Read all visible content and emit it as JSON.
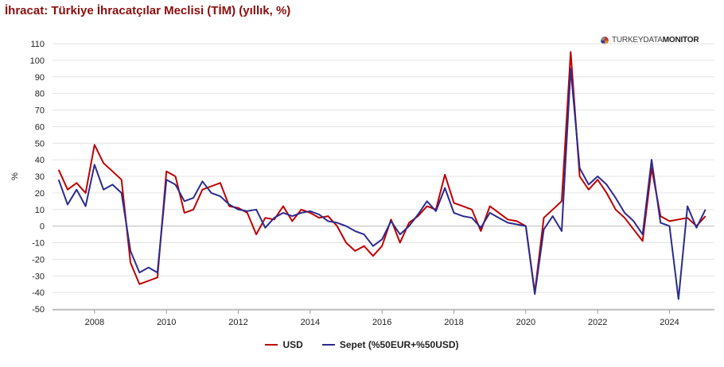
{
  "title": "İhracat: Türkiye İhracatçılar Meclisi (TİM) (yıllık, %)",
  "logo": {
    "prefix": "TURKEYDATA",
    "suffix": "MONITOR"
  },
  "chart_data": {
    "type": "line",
    "ylabel": "%",
    "ylim": [
      -50,
      110
    ],
    "yticks": [
      110,
      100,
      90,
      80,
      70,
      60,
      50,
      40,
      30,
      20,
      10,
      0,
      -10,
      -20,
      -30,
      -40,
      -50
    ],
    "xlim": [
      2006.83,
      2025.25
    ],
    "xticks": [
      2008,
      2010,
      2012,
      2014,
      2016,
      2018,
      2020,
      2022,
      2024
    ],
    "grid": "horizontal",
    "legend_position": "bottom",
    "series": [
      {
        "name": "USD",
        "color": "#c00000",
        "x": [
          2007.0,
          2007.25,
          2007.5,
          2007.75,
          2008.0,
          2008.25,
          2008.5,
          2008.75,
          2009.0,
          2009.25,
          2009.5,
          2009.75,
          2010.0,
          2010.25,
          2010.5,
          2010.75,
          2011.0,
          2011.25,
          2011.5,
          2011.75,
          2012.0,
          2012.25,
          2012.5,
          2012.75,
          2013.0,
          2013.25,
          2013.5,
          2013.75,
          2014.0,
          2014.25,
          2014.5,
          2014.75,
          2015.0,
          2015.25,
          2015.5,
          2015.75,
          2016.0,
          2016.25,
          2016.5,
          2016.75,
          2017.0,
          2017.25,
          2017.5,
          2017.75,
          2018.0,
          2018.25,
          2018.5,
          2018.75,
          2019.0,
          2019.25,
          2019.5,
          2019.75,
          2020.0,
          2020.25,
          2020.5,
          2020.75,
          2021.0,
          2021.25,
          2021.5,
          2021.75,
          2022.0,
          2022.25,
          2022.5,
          2022.75,
          2023.0,
          2023.25,
          2023.5,
          2023.75,
          2024.0,
          2024.25,
          2024.5,
          2024.75,
          2025.0
        ],
        "y": [
          34,
          22,
          26,
          20,
          49,
          38,
          33,
          28,
          -22,
          -35,
          -33,
          -31,
          33,
          30,
          8,
          10,
          22,
          24,
          26,
          12,
          11,
          8,
          -5,
          5,
          4,
          12,
          3,
          10,
          8,
          5,
          6,
          0,
          -10,
          -15,
          -12,
          -18,
          -12,
          4,
          -10,
          2,
          6,
          12,
          10,
          31,
          14,
          12,
          10,
          -3,
          12,
          8,
          4,
          3,
          0,
          -40,
          5,
          10,
          15,
          105,
          30,
          22,
          28,
          20,
          10,
          5,
          -2,
          -9,
          35,
          6,
          3,
          4,
          5,
          0,
          6
        ],
        "x_note": "quarterly-ish sample"
      },
      {
        "name": "Sepet (%50EUR+%50USD)",
        "color": "#2b2b8f",
        "x": [
          2007.0,
          2007.25,
          2007.5,
          2007.75,
          2008.0,
          2008.25,
          2008.5,
          2008.75,
          2009.0,
          2009.25,
          2009.5,
          2009.75,
          2010.0,
          2010.25,
          2010.5,
          2010.75,
          2011.0,
          2011.25,
          2011.5,
          2011.75,
          2012.0,
          2012.25,
          2012.5,
          2012.75,
          2013.0,
          2013.25,
          2013.5,
          2013.75,
          2014.0,
          2014.25,
          2014.5,
          2014.75,
          2015.0,
          2015.25,
          2015.5,
          2015.75,
          2016.0,
          2016.25,
          2016.5,
          2016.75,
          2017.0,
          2017.25,
          2017.5,
          2017.75,
          2018.0,
          2018.25,
          2018.5,
          2018.75,
          2019.0,
          2019.25,
          2019.5,
          2019.75,
          2020.0,
          2020.25,
          2020.5,
          2020.75,
          2021.0,
          2021.25,
          2021.5,
          2021.75,
          2022.0,
          2022.25,
          2022.5,
          2022.75,
          2023.0,
          2023.25,
          2023.5,
          2023.75,
          2024.0,
          2024.25,
          2024.5,
          2024.75,
          2025.0
        ],
        "y": [
          28,
          13,
          22,
          12,
          37,
          22,
          25,
          20,
          -15,
          -28,
          -25,
          -28,
          28,
          25,
          15,
          17,
          27,
          20,
          18,
          13,
          10,
          9,
          10,
          -1,
          5,
          8,
          6,
          8,
          9,
          7,
          3,
          2,
          0,
          -3,
          -5,
          -12,
          -8,
          3,
          -5,
          0,
          7,
          15,
          9,
          23,
          8,
          6,
          5,
          -1,
          8,
          5,
          2,
          1,
          0,
          -41,
          -2,
          6,
          -3,
          95,
          35,
          25,
          30,
          25,
          17,
          8,
          3,
          -5,
          40,
          2,
          0,
          -44,
          12,
          -1,
          10
        ]
      }
    ]
  }
}
